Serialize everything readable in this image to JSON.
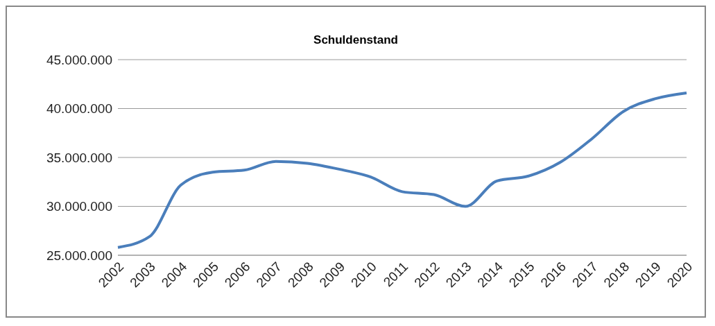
{
  "chart_data": {
    "type": "line",
    "title": "Schuldenstand",
    "categories": [
      "2002",
      "2003",
      "2004",
      "2005",
      "2006",
      "2007",
      "2008",
      "2009",
      "2010",
      "2011",
      "2012",
      "2013",
      "2014",
      "2015",
      "2016",
      "2017",
      "2018",
      "2019",
      "2020"
    ],
    "series": [
      {
        "color": "#4a7ebb",
        "values": [
          25800000,
          26900000,
          32200000,
          33500000,
          33700000,
          34600000,
          34400000,
          33800000,
          33000000,
          31500000,
          31200000,
          30000000,
          32600000,
          33100000,
          34500000,
          36900000,
          39700000,
          41000000,
          41600000
        ]
      }
    ],
    "ylim": [
      25000000,
      45000000
    ],
    "yticks": [
      {
        "value": 25000000,
        "label": "25.000.000"
      },
      {
        "value": 30000000,
        "label": "30.000.000"
      },
      {
        "value": 35000000,
        "label": "35.000.000"
      },
      {
        "value": 40000000,
        "label": "40.000.000"
      },
      {
        "value": 45000000,
        "label": "45.000.000"
      }
    ],
    "grid": "y",
    "marker": "none",
    "line_style": "solid"
  }
}
